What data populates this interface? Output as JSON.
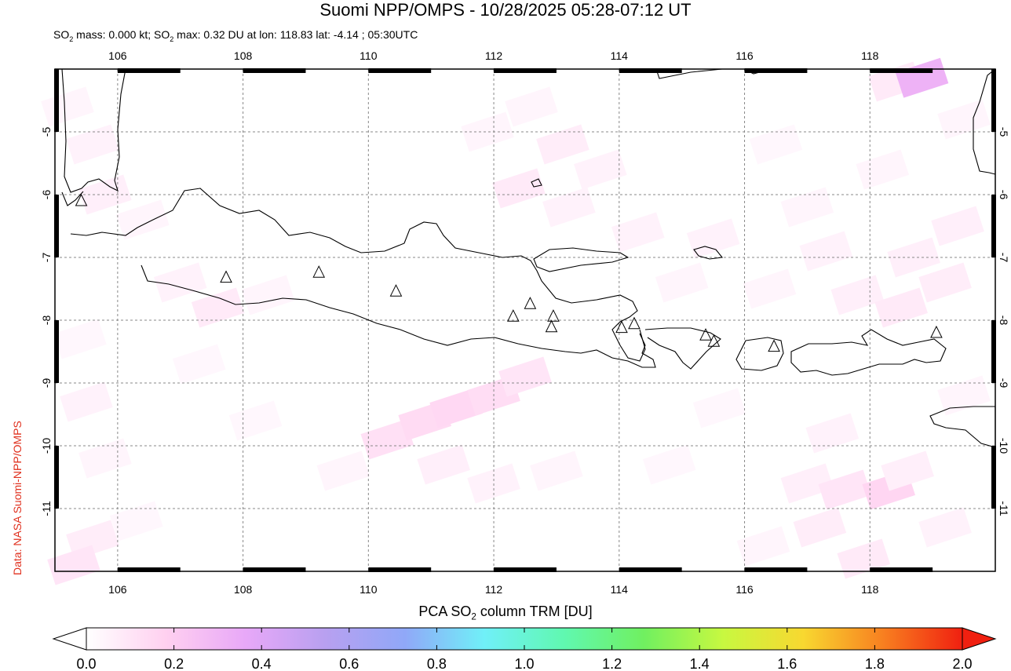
{
  "header": {
    "title": "Suomi NPP/OMPS - 10/28/2025 05:28-07:12 UT",
    "stats_prefix": "SO",
    "stats_mid1": " mass: 0.000 kt; SO",
    "stats_rest": " max: 0.32 DU at lon: 118.83 lat: -4.14 ; 05:30UTC",
    "sub2": "2"
  },
  "credit": "Data: NASA Suomi-NPP/OMPS",
  "colorbar": {
    "title_pre": "PCA SO",
    "title_sub": "2",
    "title_post": " column TRM [DU]",
    "ticks": [
      "0.0",
      "0.2",
      "0.4",
      "0.6",
      "0.8",
      "1.0",
      "1.2",
      "1.4",
      "1.6",
      "1.8",
      "2.0"
    ],
    "range": [
      0.0,
      2.0
    ],
    "colors": [
      "#ffffff",
      "#ffd0f0",
      "#e8a8f8",
      "#b8a0f0",
      "#90a8f8",
      "#70f0f8",
      "#60f8b0",
      "#70f060",
      "#c8f840",
      "#f8d830",
      "#f88020",
      "#f02010"
    ]
  },
  "map": {
    "lon_range": [
      105.0,
      120.0
    ],
    "lat_range": [
      -12.0,
      -4.0
    ],
    "lon_ticks": [
      "106",
      "108",
      "110",
      "112",
      "114",
      "116",
      "118"
    ],
    "lat_ticks": [
      "-5",
      "-6",
      "-7",
      "-8",
      "-9",
      "-10",
      "-11"
    ],
    "grid": true,
    "volcanoes": [
      {
        "lon": 105.42,
        "lat": -6.1
      },
      {
        "lon": 107.73,
        "lat": -7.32
      },
      {
        "lon": 109.21,
        "lat": -7.24
      },
      {
        "lon": 110.44,
        "lat": -7.54
      },
      {
        "lon": 112.31,
        "lat": -7.94
      },
      {
        "lon": 112.58,
        "lat": -7.74
      },
      {
        "lon": 112.95,
        "lat": -7.94
      },
      {
        "lon": 112.92,
        "lat": -8.11
      },
      {
        "lon": 114.04,
        "lat": -8.12
      },
      {
        "lon": 114.24,
        "lat": -8.06
      },
      {
        "lon": 115.38,
        "lat": -8.24
      },
      {
        "lon": 115.51,
        "lat": -8.34
      },
      {
        "lon": 116.47,
        "lat": -8.42
      },
      {
        "lon": 119.06,
        "lat": -8.2
      }
    ],
    "so2_cells": [
      {
        "lon": 105.2,
        "lat": -4.6,
        "v": 0.04
      },
      {
        "lon": 105.6,
        "lat": -5.2,
        "v": 0.05
      },
      {
        "lon": 105.8,
        "lat": -6.0,
        "v": 0.06
      },
      {
        "lon": 106.4,
        "lat": -6.4,
        "v": 0.04
      },
      {
        "lon": 107.0,
        "lat": -7.4,
        "v": 0.05
      },
      {
        "lon": 107.6,
        "lat": -7.8,
        "v": 0.08
      },
      {
        "lon": 108.4,
        "lat": -7.6,
        "v": 0.04
      },
      {
        "lon": 105.4,
        "lat": -8.3,
        "v": 0.03
      },
      {
        "lon": 105.5,
        "lat": -9.3,
        "v": 0.05
      },
      {
        "lon": 105.8,
        "lat": -10.2,
        "v": 0.04
      },
      {
        "lon": 106.3,
        "lat": -11.2,
        "v": 0.03
      },
      {
        "lon": 105.6,
        "lat": -11.5,
        "v": 0.07
      },
      {
        "lon": 105.3,
        "lat": -11.9,
        "v": 0.1
      },
      {
        "lon": 107.3,
        "lat": -8.7,
        "v": 0.03
      },
      {
        "lon": 108.2,
        "lat": -9.6,
        "v": 0.03
      },
      {
        "lon": 109.6,
        "lat": -10.4,
        "v": 0.04
      },
      {
        "lon": 110.3,
        "lat": -9.9,
        "v": 0.12
      },
      {
        "lon": 110.9,
        "lat": -9.6,
        "v": 0.14
      },
      {
        "lon": 111.4,
        "lat": -9.4,
        "v": 0.15
      },
      {
        "lon": 112.0,
        "lat": -9.2,
        "v": 0.13
      },
      {
        "lon": 112.5,
        "lat": -8.9,
        "v": 0.1
      },
      {
        "lon": 111.2,
        "lat": -10.3,
        "v": 0.06
      },
      {
        "lon": 112.0,
        "lat": -10.6,
        "v": 0.05
      },
      {
        "lon": 113.0,
        "lat": -10.4,
        "v": 0.04
      },
      {
        "lon": 111.9,
        "lat": -5.0,
        "v": 0.04
      },
      {
        "lon": 112.6,
        "lat": -4.6,
        "v": 0.04
      },
      {
        "lon": 113.1,
        "lat": -5.2,
        "v": 0.07
      },
      {
        "lon": 113.7,
        "lat": -5.6,
        "v": 0.05
      },
      {
        "lon": 112.4,
        "lat": -5.9,
        "v": 0.08
      },
      {
        "lon": 113.2,
        "lat": -6.2,
        "v": 0.05
      },
      {
        "lon": 114.3,
        "lat": -6.6,
        "v": 0.05
      },
      {
        "lon": 115.5,
        "lat": -6.7,
        "v": 0.05
      },
      {
        "lon": 115.0,
        "lat": -7.4,
        "v": 0.04
      },
      {
        "lon": 117.0,
        "lat": -6.2,
        "v": 0.04
      },
      {
        "lon": 117.3,
        "lat": -6.9,
        "v": 0.05
      },
      {
        "lon": 116.4,
        "lat": -7.5,
        "v": 0.04
      },
      {
        "lon": 117.8,
        "lat": -7.6,
        "v": 0.06
      },
      {
        "lon": 118.5,
        "lat": -7.8,
        "v": 0.08
      },
      {
        "lon": 119.2,
        "lat": -7.4,
        "v": 0.07
      },
      {
        "lon": 118.7,
        "lat": -7.0,
        "v": 0.06
      },
      {
        "lon": 118.4,
        "lat": -4.2,
        "v": 0.08
      },
      {
        "lon": 118.83,
        "lat": -4.14,
        "v": 0.32
      },
      {
        "lon": 119.5,
        "lat": -4.8,
        "v": 0.04
      },
      {
        "lon": 118.2,
        "lat": -5.6,
        "v": 0.04
      },
      {
        "lon": 119.4,
        "lat": -6.5,
        "v": 0.06
      },
      {
        "lon": 117.4,
        "lat": -9.8,
        "v": 0.05
      },
      {
        "lon": 117.0,
        "lat": -10.6,
        "v": 0.06
      },
      {
        "lon": 117.6,
        "lat": -10.7,
        "v": 0.1
      },
      {
        "lon": 118.3,
        "lat": -10.7,
        "v": 0.16
      },
      {
        "lon": 118.6,
        "lat": -10.4,
        "v": 0.06
      },
      {
        "lon": 117.2,
        "lat": -11.3,
        "v": 0.07
      },
      {
        "lon": 117.9,
        "lat": -11.8,
        "v": 0.08
      },
      {
        "lon": 116.3,
        "lat": -11.6,
        "v": 0.04
      },
      {
        "lon": 114.8,
        "lat": -10.3,
        "v": 0.03
      },
      {
        "lon": 115.6,
        "lat": -9.4,
        "v": 0.03
      },
      {
        "lon": 119.2,
        "lat": -11.3,
        "v": 0.05
      },
      {
        "lon": 119.5,
        "lat": -9.2,
        "v": 0.04
      },
      {
        "lon": 116.5,
        "lat": -5.2,
        "v": 0.03
      }
    ]
  }
}
